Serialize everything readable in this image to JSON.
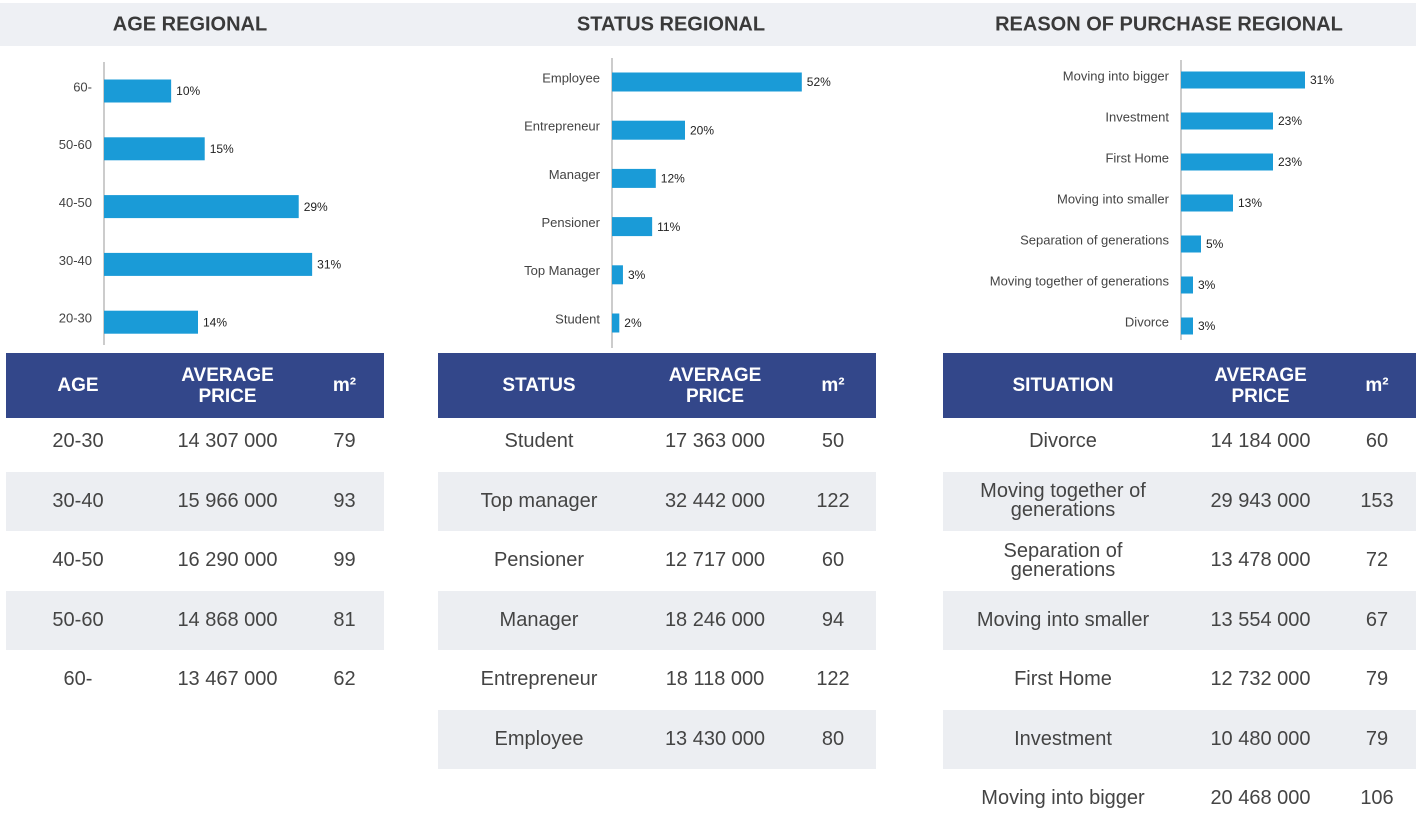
{
  "chart_data": [
    {
      "type": "bar",
      "title": "AGE REGIONAL",
      "orientation": "horizontal",
      "color": "#1a9bd7",
      "categories": [
        "60-",
        "50-60",
        "40-50",
        "30-40",
        "20-30"
      ],
      "values": [
        10,
        15,
        29,
        31,
        14
      ],
      "value_labels": [
        "10%",
        "15%",
        "29%",
        "31%",
        "14%"
      ],
      "xlim": [
        0,
        35
      ]
    },
    {
      "type": "bar",
      "title": "STATUS REGIONAL",
      "orientation": "horizontal",
      "color": "#1a9bd7",
      "categories": [
        "Employee",
        "Entrepreneur",
        "Manager",
        "Pensioner",
        "Top Manager",
        "Student"
      ],
      "values": [
        52,
        20,
        12,
        11,
        3,
        2
      ],
      "value_labels": [
        "52%",
        "20%",
        "12%",
        "11%",
        "3%",
        "2%"
      ],
      "xlim": [
        0,
        60
      ]
    },
    {
      "type": "bar",
      "title": "REASON OF PURCHASE  REGIONAL",
      "orientation": "horizontal",
      "color": "#1a9bd7",
      "categories": [
        "Moving into bigger",
        "Investment",
        "First Home",
        "Moving into smaller",
        "Separation of generations",
        "Moving together of generations",
        "Divorce"
      ],
      "values": [
        31,
        23,
        23,
        13,
        5,
        3,
        3
      ],
      "value_labels": [
        "31%",
        "23%",
        "23%",
        "13%",
        "5%",
        "3%",
        "3%"
      ],
      "xlim": [
        0,
        55
      ]
    }
  ],
  "tables": [
    {
      "header": [
        "AGE",
        "AVERAGE PRICE",
        "m²"
      ],
      "rows": [
        [
          "20-30",
          "14 307 000",
          "79"
        ],
        [
          "30-40",
          "15 966 000",
          "93"
        ],
        [
          "40-50",
          "16 290 000",
          "99"
        ],
        [
          "50-60",
          "14 868 000",
          "81"
        ],
        [
          "60-",
          "13 467 000",
          "62"
        ]
      ]
    },
    {
      "header": [
        "STATUS",
        "AVERAGE PRICE",
        "m²"
      ],
      "rows": [
        [
          "Student",
          "17 363 000",
          "50"
        ],
        [
          "Top manager",
          "32 442 000",
          "122"
        ],
        [
          "Pensioner",
          "12 717 000",
          "60"
        ],
        [
          "Manager",
          "18 246 000",
          "94"
        ],
        [
          "Entrepreneur",
          "18 118 000",
          "122"
        ],
        [
          "Employee",
          "13 430 000",
          "80"
        ]
      ]
    },
    {
      "header": [
        "SITUATION",
        "AVERAGE PRICE",
        "m²"
      ],
      "rows": [
        [
          "Divorce",
          "14 184 000",
          "60"
        ],
        [
          "Moving together of generations",
          "29 943 000",
          "153"
        ],
        [
          "Separation of generations",
          "13 478 000",
          "72"
        ],
        [
          "Moving into smaller",
          "13 554 000",
          "67"
        ],
        [
          "First Home",
          "12 732 000",
          "79"
        ],
        [
          "Investment",
          "10 480 000",
          "79"
        ],
        [
          "Moving into bigger",
          "20 468 000",
          "106"
        ]
      ]
    }
  ]
}
